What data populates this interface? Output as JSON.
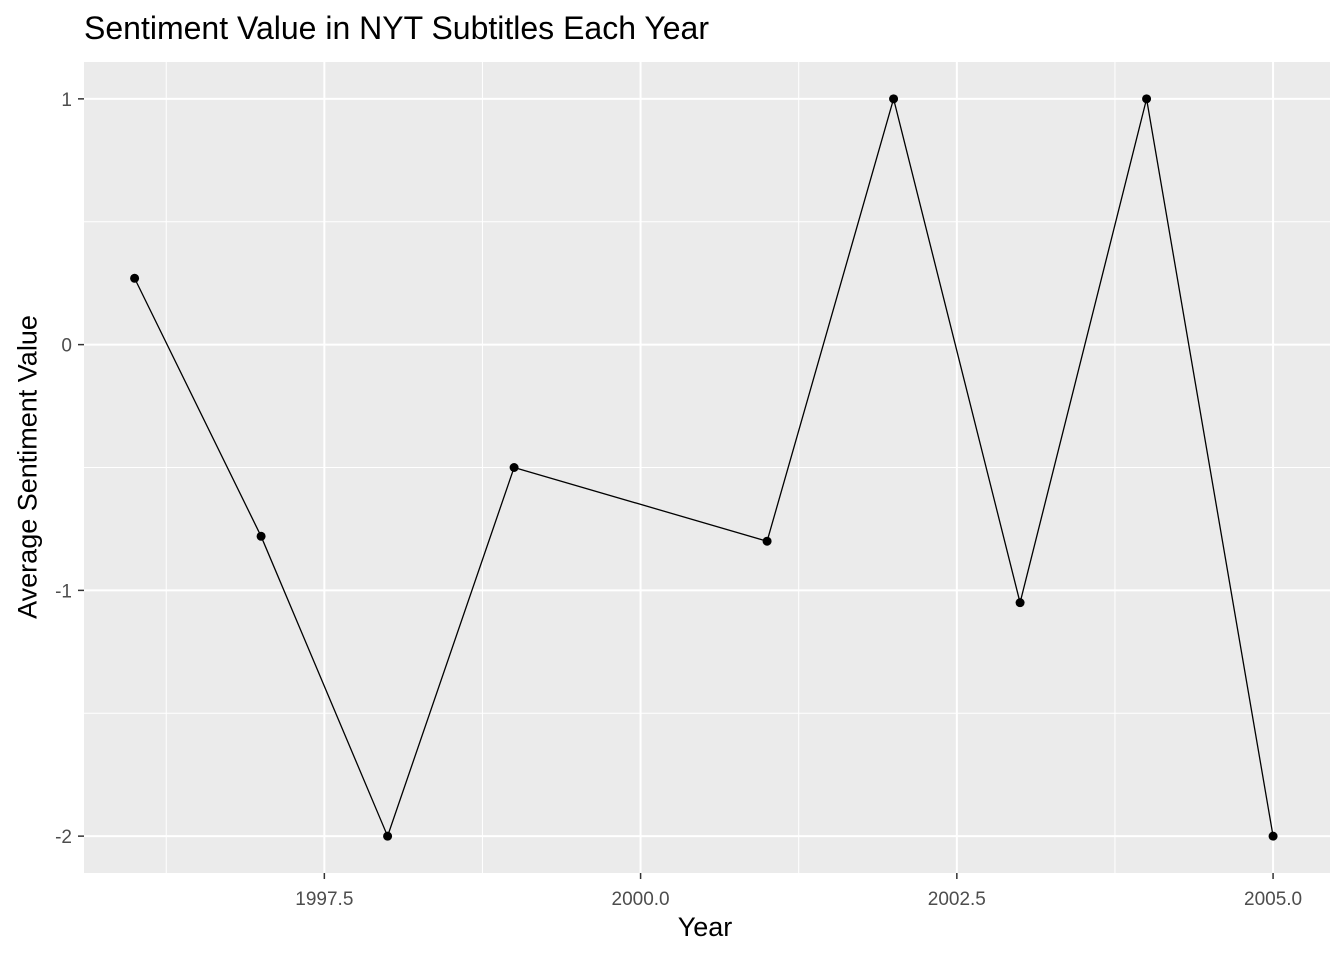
{
  "chart_data": {
    "type": "line",
    "title": "Sentiment Value in NYT Subtitles Each Year",
    "xlabel": "Year",
    "ylabel": "Average Sentiment Value",
    "xlim": [
      1995.6,
      2005.45
    ],
    "ylim": [
      -2.15,
      1.15
    ],
    "x_ticks": [
      1997.5,
      2000.0,
      2002.5,
      2005.0
    ],
    "x_tick_labels": [
      "1997.5",
      "2000.0",
      "2002.5",
      "2005.0"
    ],
    "y_ticks": [
      -2,
      -1,
      0,
      1
    ],
    "y_tick_labels": [
      "-2",
      "-1",
      "0",
      "1"
    ],
    "grid": true,
    "legend": "none",
    "series": [
      {
        "x": [
          1996,
          1997,
          1998,
          1999,
          2001,
          2002,
          2003,
          2004,
          2005
        ],
        "y": [
          0.27,
          -0.78,
          -2.0,
          -0.5,
          -0.8,
          1.0,
          -1.05,
          1.0,
          -2.0
        ],
        "color": "#000000"
      }
    ],
    "colors": {
      "panel": "#EBEBEB",
      "grid": "#FFFFFF",
      "line": "#000000"
    }
  }
}
